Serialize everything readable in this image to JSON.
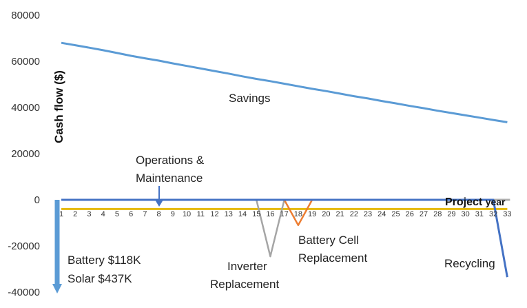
{
  "chart_data": {
    "type": "line",
    "ylabel": "Cash flow ($)",
    "xlabel": "Project",
    "xlabel_suffix": "year",
    "ylim": [
      -40000,
      80000
    ],
    "yticks": [
      80000,
      60000,
      40000,
      20000,
      0,
      -20000,
      -40000
    ],
    "x": [
      1,
      2,
      3,
      4,
      5,
      6,
      7,
      8,
      9,
      10,
      11,
      12,
      13,
      14,
      15,
      16,
      17,
      18,
      19,
      20,
      21,
      22,
      23,
      24,
      25,
      26,
      27,
      28,
      29,
      30,
      31,
      32,
      33
    ],
    "grid": false,
    "series": [
      {
        "name": "Savings",
        "color": "#5b9bd5",
        "x": [
          1,
          2,
          3,
          4,
          5,
          6,
          7,
          8,
          9,
          10,
          11,
          12,
          13,
          14,
          15,
          16,
          17,
          18,
          19,
          20,
          21,
          22,
          23,
          24,
          25,
          26,
          27,
          28,
          29,
          30,
          31,
          32,
          33
        ],
        "values": [
          68000,
          67000,
          65900,
          64800,
          63600,
          62400,
          61300,
          60300,
          59100,
          58000,
          56900,
          55800,
          54700,
          53500,
          52400,
          51400,
          50300,
          49200,
          48100,
          47100,
          46000,
          44900,
          43900,
          42800,
          41800,
          40700,
          39700,
          38600,
          37600,
          36600,
          35600,
          34600,
          33600
        ]
      },
      {
        "name": "Operations & Maintenance",
        "color": "#e5b80b",
        "x": [
          1,
          2,
          3,
          4,
          5,
          6,
          7,
          8,
          9,
          10,
          11,
          12,
          13,
          14,
          15,
          16,
          17,
          18,
          19,
          20,
          21,
          22,
          23,
          24,
          25,
          26,
          27,
          28,
          29,
          30,
          31,
          32,
          33
        ],
        "values": [
          -4000,
          -4000,
          -4000,
          -4000,
          -4000,
          -4000,
          -4000,
          -4000,
          -4000,
          -4000,
          -4000,
          -4000,
          -4000,
          -4000,
          -4000,
          -4000,
          -4000,
          -4000,
          -4000,
          -4000,
          -4000,
          -4000,
          -4000,
          -4000,
          -4000,
          -4000,
          -4000,
          -4000,
          -4000,
          -4000,
          -4000,
          -4000,
          -4000
        ]
      },
      {
        "name": "Inverter Replacement",
        "color": "#a5a5a5",
        "x": [
          15,
          16,
          17
        ],
        "values": [
          0,
          -24500,
          0
        ]
      },
      {
        "name": "Battery Cell Replacement",
        "color": "#ed7d31",
        "x": [
          17,
          18,
          19
        ],
        "values": [
          0,
          -11000,
          0
        ]
      },
      {
        "name": "Recycling",
        "color": "#4472c4",
        "x": [
          1,
          32,
          33
        ],
        "values": [
          0,
          0,
          -33500
        ]
      },
      {
        "name": "Initial capital (Battery $118K, Solar $437K)",
        "color": "#5b9bd5",
        "x": [
          1,
          1
        ],
        "values": [
          0,
          -40000
        ]
      }
    ],
    "annotations": {
      "savings": "Savings",
      "om_line1": "Operations &",
      "om_line2": "Maintenance",
      "inverter_line1": "Inverter",
      "inverter_line2": "Replacement",
      "battery_cell_line1": "Battery Cell",
      "battery_cell_line2": "Replacement",
      "capital_line1": "Battery $118K",
      "capital_line2": "Solar $437K",
      "recycling": "Recycling"
    }
  }
}
